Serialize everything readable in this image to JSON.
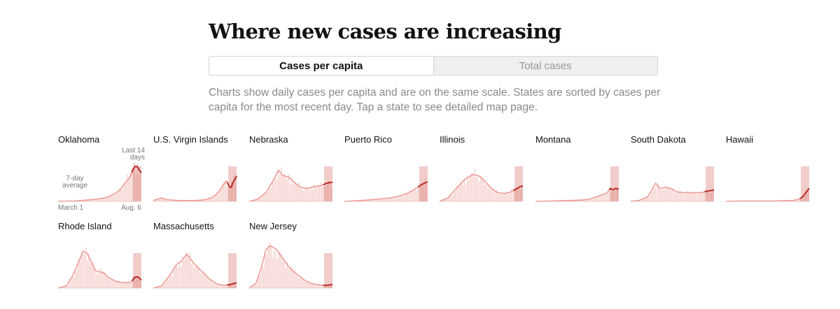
{
  "header": {
    "title": "Where new cases are increasing"
  },
  "toggle": {
    "options": [
      "Cases per capita",
      "Total cases"
    ],
    "selected": "Cases per capita"
  },
  "description": "Charts show daily cases per capita and are on the same scale. States are sorted by cases per capita for the most recent day. Tap a state to see detailed map page.",
  "annotations": {
    "last14_line1": "Last 14",
    "last14_line2": "days",
    "avg_line1": "7-day",
    "avg_line2": "average",
    "start_date": "March 1",
    "end_date": "Aug. 6"
  },
  "colors": {
    "bar": "#f5cdc9",
    "bar_highlight": "#e6a39c",
    "line": "#ee9e98",
    "line_highlight": "#b4221b"
  },
  "chart_data": [
    {
      "type": "area",
      "name": "Oklahoma",
      "profile": [
        [
          0,
          0
        ],
        [
          0.2,
          0.01
        ],
        [
          0.35,
          0.03
        ],
        [
          0.5,
          0.06
        ],
        [
          0.6,
          0.1
        ],
        [
          0.7,
          0.2
        ],
        [
          0.76,
          0.3
        ],
        [
          0.8,
          0.42
        ],
        [
          0.84,
          0.5
        ],
        [
          0.88,
          0.62
        ],
        [
          0.9,
          0.74
        ],
        [
          0.93,
          0.82
        ],
        [
          0.96,
          0.78
        ],
        [
          0.98,
          0.7
        ],
        [
          1,
          0.66
        ]
      ]
    },
    {
      "type": "area",
      "name": "U.S. Virgin Islands",
      "profile": [
        [
          0,
          0.02
        ],
        [
          0.1,
          0.08
        ],
        [
          0.15,
          0.04
        ],
        [
          0.3,
          0.02
        ],
        [
          0.5,
          0.02
        ],
        [
          0.6,
          0.03
        ],
        [
          0.7,
          0.08
        ],
        [
          0.78,
          0.2
        ],
        [
          0.84,
          0.38
        ],
        [
          0.88,
          0.48
        ],
        [
          0.9,
          0.38
        ],
        [
          0.93,
          0.3
        ],
        [
          0.96,
          0.45
        ],
        [
          1,
          0.58
        ]
      ]
    },
    {
      "type": "area",
      "name": "Nebraska",
      "profile": [
        [
          0,
          0
        ],
        [
          0.1,
          0.05
        ],
        [
          0.2,
          0.2
        ],
        [
          0.3,
          0.52
        ],
        [
          0.35,
          0.72
        ],
        [
          0.4,
          0.6
        ],
        [
          0.48,
          0.55
        ],
        [
          0.55,
          0.42
        ],
        [
          0.62,
          0.32
        ],
        [
          0.7,
          0.3
        ],
        [
          0.78,
          0.34
        ],
        [
          0.86,
          0.36
        ],
        [
          0.93,
          0.42
        ],
        [
          1,
          0.44
        ]
      ]
    },
    {
      "type": "area",
      "name": "Puerto Rico",
      "profile": [
        [
          0,
          0
        ],
        [
          0.2,
          0.02
        ],
        [
          0.4,
          0.05
        ],
        [
          0.55,
          0.08
        ],
        [
          0.65,
          0.12
        ],
        [
          0.75,
          0.18
        ],
        [
          0.82,
          0.25
        ],
        [
          0.88,
          0.32
        ],
        [
          0.92,
          0.38
        ],
        [
          0.96,
          0.42
        ],
        [
          1,
          0.45
        ]
      ]
    },
    {
      "type": "area",
      "name": "Illinois",
      "profile": [
        [
          0,
          0
        ],
        [
          0.1,
          0.08
        ],
        [
          0.2,
          0.3
        ],
        [
          0.3,
          0.5
        ],
        [
          0.4,
          0.62
        ],
        [
          0.48,
          0.58
        ],
        [
          0.55,
          0.45
        ],
        [
          0.62,
          0.3
        ],
        [
          0.7,
          0.2
        ],
        [
          0.78,
          0.18
        ],
        [
          0.86,
          0.22
        ],
        [
          0.93,
          0.3
        ],
        [
          1,
          0.36
        ]
      ]
    },
    {
      "type": "area",
      "name": "Montana",
      "profile": [
        [
          0,
          0
        ],
        [
          0.2,
          0.01
        ],
        [
          0.4,
          0.02
        ],
        [
          0.55,
          0.03
        ],
        [
          0.65,
          0.05
        ],
        [
          0.72,
          0.1
        ],
        [
          0.8,
          0.15
        ],
        [
          0.86,
          0.2
        ],
        [
          0.9,
          0.3
        ],
        [
          0.93,
          0.26
        ],
        [
          0.96,
          0.3
        ],
        [
          1,
          0.28
        ]
      ]
    },
    {
      "type": "area",
      "name": "South Dakota",
      "profile": [
        [
          0,
          0
        ],
        [
          0.1,
          0.02
        ],
        [
          0.2,
          0.1
        ],
        [
          0.25,
          0.25
        ],
        [
          0.3,
          0.42
        ],
        [
          0.35,
          0.3
        ],
        [
          0.42,
          0.32
        ],
        [
          0.48,
          0.3
        ],
        [
          0.55,
          0.22
        ],
        [
          0.65,
          0.2
        ],
        [
          0.75,
          0.2
        ],
        [
          0.85,
          0.2
        ],
        [
          0.93,
          0.24
        ],
        [
          1,
          0.26
        ]
      ]
    },
    {
      "type": "area",
      "name": "Hawaii",
      "profile": [
        [
          0,
          0
        ],
        [
          0.2,
          0.01
        ],
        [
          0.4,
          0.01
        ],
        [
          0.6,
          0.01
        ],
        [
          0.8,
          0.02
        ],
        [
          0.88,
          0.05
        ],
        [
          0.92,
          0.1
        ],
        [
          0.96,
          0.2
        ],
        [
          1,
          0.3
        ]
      ]
    },
    {
      "type": "area",
      "name": "Rhode Island",
      "profile": [
        [
          0,
          0
        ],
        [
          0.1,
          0.05
        ],
        [
          0.18,
          0.3
        ],
        [
          0.25,
          0.62
        ],
        [
          0.3,
          0.85
        ],
        [
          0.35,
          0.8
        ],
        [
          0.4,
          0.6
        ],
        [
          0.45,
          0.4
        ],
        [
          0.55,
          0.35
        ],
        [
          0.6,
          0.25
        ],
        [
          0.7,
          0.15
        ],
        [
          0.8,
          0.12
        ],
        [
          0.88,
          0.14
        ],
        [
          0.92,
          0.25
        ],
        [
          0.96,
          0.26
        ],
        [
          1,
          0.18
        ]
      ]
    },
    {
      "type": "area",
      "name": "Massachusetts",
      "profile": [
        [
          0,
          0
        ],
        [
          0.1,
          0.05
        ],
        [
          0.2,
          0.3
        ],
        [
          0.28,
          0.55
        ],
        [
          0.34,
          0.62
        ],
        [
          0.4,
          0.78
        ],
        [
          0.45,
          0.66
        ],
        [
          0.52,
          0.5
        ],
        [
          0.6,
          0.35
        ],
        [
          0.68,
          0.2
        ],
        [
          0.76,
          0.1
        ],
        [
          0.84,
          0.06
        ],
        [
          0.92,
          0.08
        ],
        [
          1,
          0.12
        ]
      ]
    },
    {
      "type": "area",
      "name": "New Jersey",
      "profile": [
        [
          0,
          0
        ],
        [
          0.08,
          0.1
        ],
        [
          0.15,
          0.5
        ],
        [
          0.2,
          0.88
        ],
        [
          0.25,
          0.98
        ],
        [
          0.32,
          0.9
        ],
        [
          0.38,
          0.75
        ],
        [
          0.45,
          0.55
        ],
        [
          0.52,
          0.4
        ],
        [
          0.6,
          0.28
        ],
        [
          0.68,
          0.16
        ],
        [
          0.76,
          0.1
        ],
        [
          0.84,
          0.07
        ],
        [
          0.92,
          0.06
        ],
        [
          1,
          0.08
        ]
      ]
    }
  ]
}
